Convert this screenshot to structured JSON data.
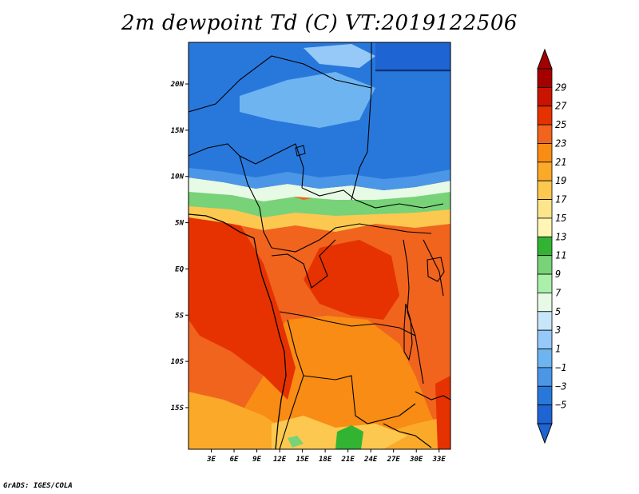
{
  "title": "2m dewpoint Td (C) VT:2019122506",
  "footer": "GrADS: IGES/COLA",
  "map": {
    "lat_ticks": [
      "20N",
      "15N",
      "10N",
      "5N",
      "EQ",
      "5S",
      "10S",
      "15S"
    ],
    "lon_ticks": [
      "3E",
      "6E",
      "9E",
      "12E",
      "15E",
      "18E",
      "21E",
      "24E",
      "27E",
      "30E",
      "33E"
    ],
    "lat_range": [
      -19.5,
      24.5
    ],
    "lon_range": [
      0,
      34.5
    ],
    "ocean_color": "#f0641e",
    "border_color": "#000000"
  },
  "colorbar": {
    "labels": [
      "29",
      "27",
      "25",
      "23",
      "21",
      "19",
      "17",
      "15",
      "13",
      "11",
      "9",
      "7",
      "5",
      "3",
      "1",
      "−1",
      "−3",
      "−5"
    ],
    "colors": [
      "#a50000",
      "#c81400",
      "#e63200",
      "#f0641e",
      "#f88c14",
      "#faaa28",
      "#fcc850",
      "#fde58c",
      "#fff5b4",
      "#32b432",
      "#78d278",
      "#aaf0aa",
      "#e6fae6",
      "#c8e6fa",
      "#96c8f8",
      "#6eb4f0",
      "#4b96e6",
      "#2878dc",
      "#1e64d2"
    ],
    "over_color": "#a50000",
    "under_color": "#1e64d2"
  }
}
